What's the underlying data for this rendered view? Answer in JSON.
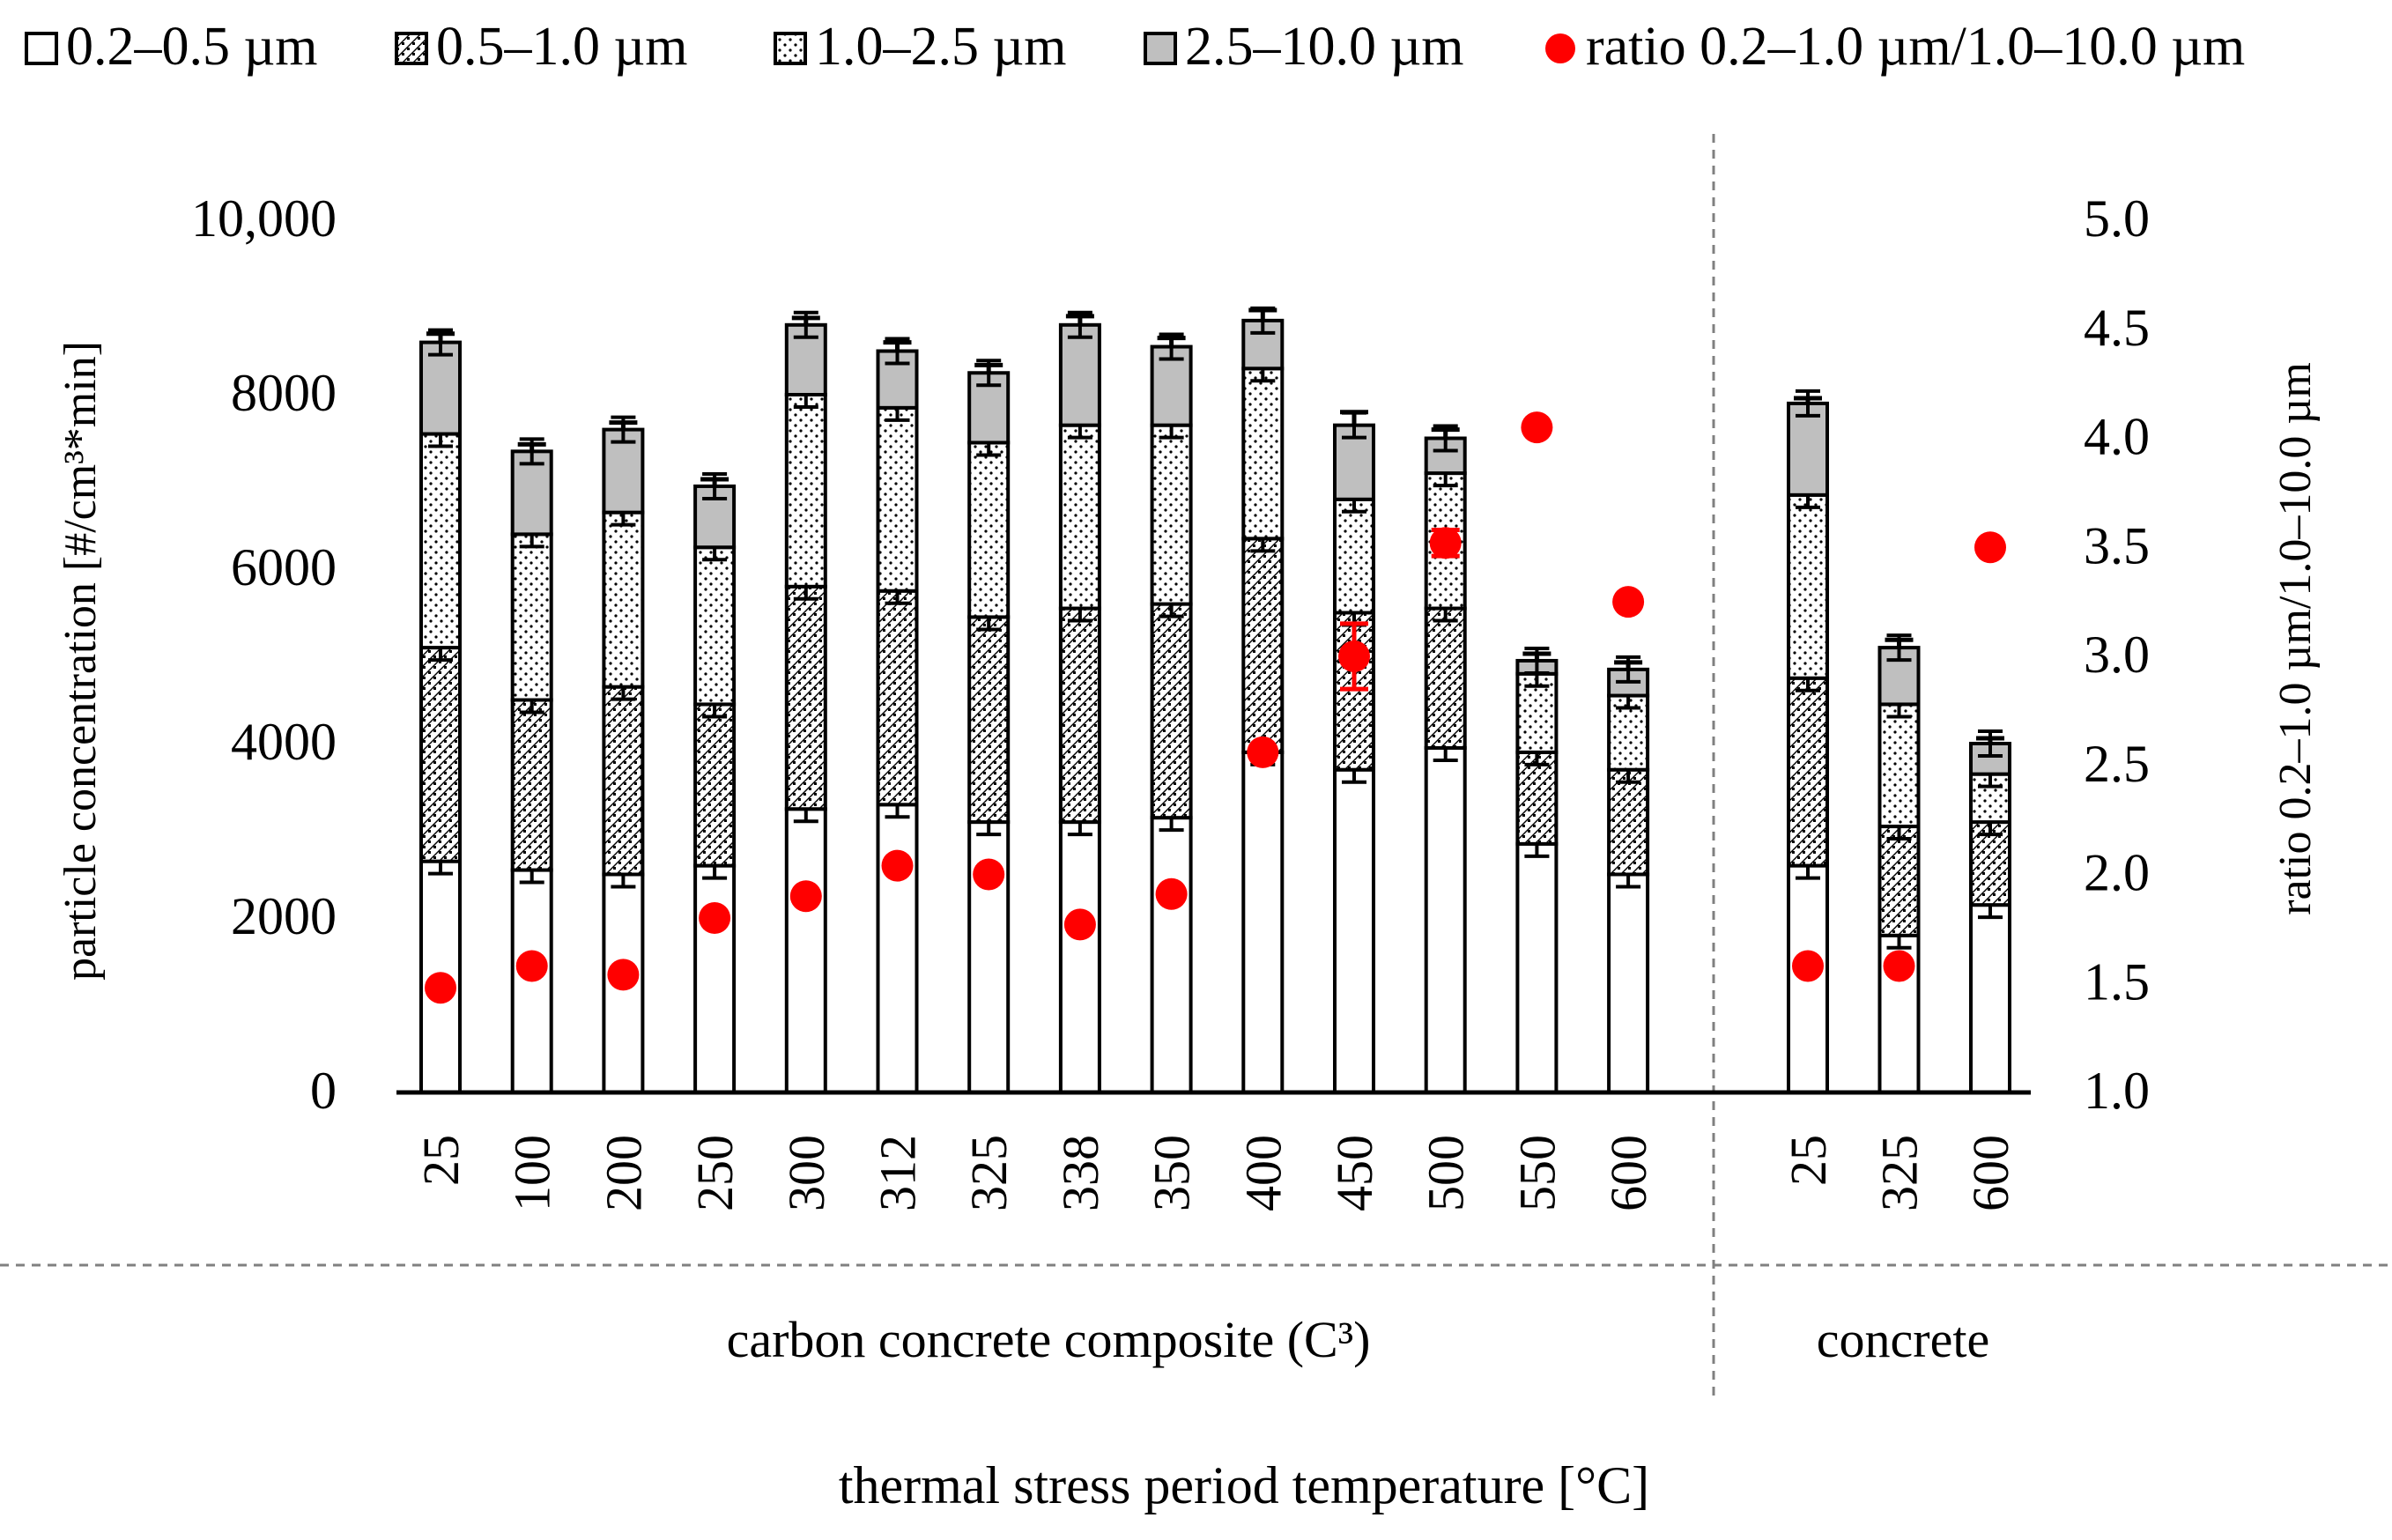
{
  "chart_data": {
    "type": "bar",
    "stacked": true,
    "groups": [
      {
        "name": "carbon concrete composite (C³)",
        "categories": [
          "25",
          "100",
          "200",
          "250",
          "300",
          "312",
          "325",
          "338",
          "350",
          "400",
          "450",
          "500",
          "550",
          "600"
        ]
      },
      {
        "name": "concrete",
        "categories": [
          "25",
          "325",
          "600"
        ]
      }
    ],
    "series": [
      {
        "name": "0.2–0.5 µm",
        "pattern": "white",
        "values": [
          2650,
          2550,
          2500,
          2600,
          3250,
          3300,
          3100,
          3100,
          3150,
          3900,
          3700,
          3950,
          2850,
          2500,
          2600,
          1800,
          2150
        ]
      },
      {
        "name": "0.5–1.0 µm",
        "pattern": "checker",
        "values": [
          2450,
          1950,
          2150,
          1850,
          2550,
          2450,
          2350,
          2450,
          2450,
          2450,
          1800,
          1600,
          1050,
          1200,
          2150,
          1250,
          950
        ]
      },
      {
        "name": "1.0–2.5 µm",
        "pattern": "dots",
        "values": [
          2450,
          1900,
          2000,
          1800,
          2200,
          2100,
          2000,
          2100,
          2050,
          1950,
          1300,
          1550,
          900,
          850,
          2100,
          1400,
          550
        ]
      },
      {
        "name": "2.5–10.0 µm",
        "pattern": "gray",
        "values": [
          1050,
          950,
          950,
          700,
          800,
          650,
          800,
          1150,
          900,
          550,
          850,
          400,
          150,
          300,
          1050,
          650,
          350
        ]
      }
    ],
    "errors_total": [
      100,
      80,
      80,
      80,
      80,
      100,
      90,
      100,
      100,
      120,
      150,
      100,
      80,
      80,
      60,
      90,
      60
    ],
    "ratio": {
      "name": "ratio 0.2–1.0 µm/1.0–10.0 µm",
      "values": [
        1.48,
        1.58,
        1.54,
        1.8,
        1.9,
        2.04,
        2.0,
        1.77,
        1.91,
        2.56,
        3.0,
        3.52,
        4.05,
        3.25,
        1.58,
        1.58,
        3.5
      ],
      "errors": [
        0,
        0,
        0,
        0,
        0,
        0,
        0,
        0,
        0,
        0,
        0.15,
        0.06,
        0,
        0,
        0,
        0,
        0
      ]
    },
    "y_left": {
      "label": "particle concentration [#/cm³*min]",
      "min": 0,
      "max": 10000,
      "ticks": [
        0,
        2000,
        4000,
        6000,
        8000,
        10000
      ],
      "tick_labels": [
        "0",
        "2000",
        "4000",
        "6000",
        "8000",
        "10,000"
      ]
    },
    "y_right": {
      "label": "ratio 0.2–1.0 µm/1.0–10.0 µm",
      "min": 1.0,
      "max": 5.0,
      "ticks": [
        1.0,
        1.5,
        2.0,
        2.5,
        3.0,
        3.5,
        4.0,
        4.5,
        5.0
      ],
      "tick_labels": [
        "1.0",
        "1.5",
        "2.0",
        "2.5",
        "3.0",
        "3.5",
        "4.0",
        "4.5",
        "5.0"
      ]
    },
    "xlabel": "thermal stress period temperature [°C]",
    "legend_position": "top"
  },
  "colors": {
    "ratio_marker": "#ff0000",
    "gray_fill": "#bfbfbf",
    "axis": "#000000",
    "divider": "#808080"
  },
  "legend": [
    {
      "label": "0.2–0.5 µm",
      "pattern": "white"
    },
    {
      "label": "0.5–1.0 µm",
      "pattern": "checker"
    },
    {
      "label": "1.0–2.5 µm",
      "pattern": "dots"
    },
    {
      "label": "2.5–10.0 µm",
      "pattern": "gray"
    },
    {
      "label": "ratio 0.2–1.0 µm/1.0–10.0 µm",
      "pattern": "marker"
    }
  ]
}
